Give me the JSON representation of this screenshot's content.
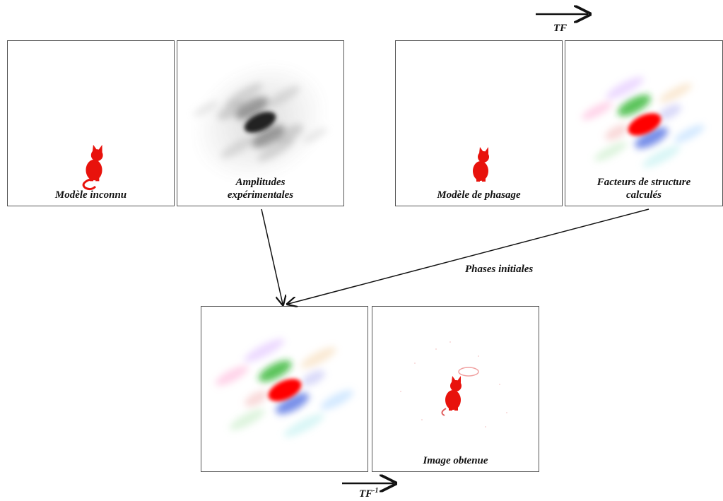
{
  "panels": {
    "unknown_model": {
      "caption": "Modèle inconnu"
    },
    "experimental_amplitudes": {
      "caption_line1": "Amplitudes",
      "caption_line2": "expérimentales"
    },
    "phasing_model": {
      "caption": "Modèle de phasage"
    },
    "calculated_structure_factors": {
      "caption_line1": "Facteurs de structure",
      "caption_line2": "calculés"
    },
    "combined_map": {
      "caption": ""
    },
    "obtained_image": {
      "caption": "Image obtenue"
    }
  },
  "arrows": {
    "forward_transform": {
      "label": "TF"
    },
    "inverse_transform": {
      "label_base": "TF",
      "label_sup": "-1"
    },
    "phases": {
      "label": "Phases initiales"
    }
  },
  "colors": {
    "cat": "#e8120c",
    "border": "#555555",
    "arrow": "#111111"
  }
}
